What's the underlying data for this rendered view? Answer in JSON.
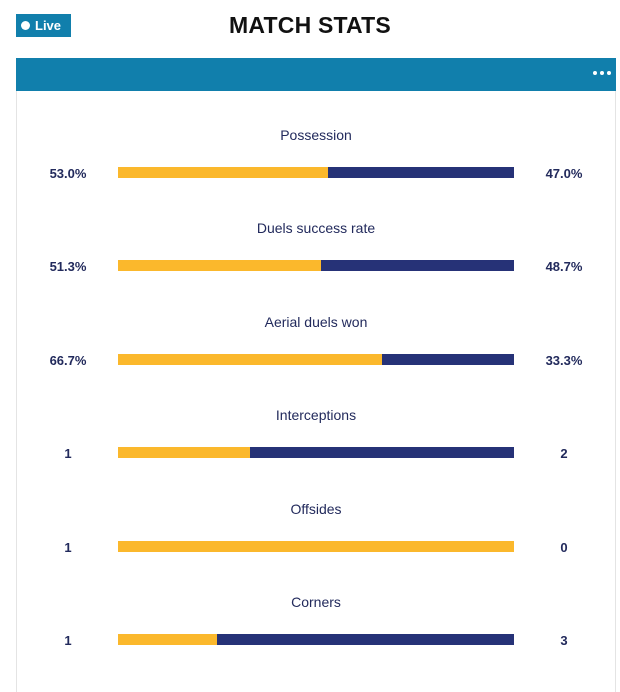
{
  "header": {
    "live_label": "Live",
    "title": "MATCH STATS",
    "menu_icon": "more-horizontal-icon"
  },
  "colors": {
    "accent": "#117fac",
    "home_bar": "#fbb82c",
    "away_bar": "#263277",
    "text": "#222a5c"
  },
  "stats": [
    {
      "label": "Possession",
      "home": "53.0%",
      "away": "47.0%",
      "home_share": 0.53
    },
    {
      "label": "Duels success rate",
      "home": "51.3%",
      "away": "48.7%",
      "home_share": 0.513
    },
    {
      "label": "Aerial duels won",
      "home": "66.7%",
      "away": "33.3%",
      "home_share": 0.667
    },
    {
      "label": "Interceptions",
      "home": "1",
      "away": "2",
      "home_share": 0.333
    },
    {
      "label": "Offsides",
      "home": "1",
      "away": "0",
      "home_share": 1.0
    },
    {
      "label": "Corners",
      "home": "1",
      "away": "3",
      "home_share": 0.25
    }
  ]
}
